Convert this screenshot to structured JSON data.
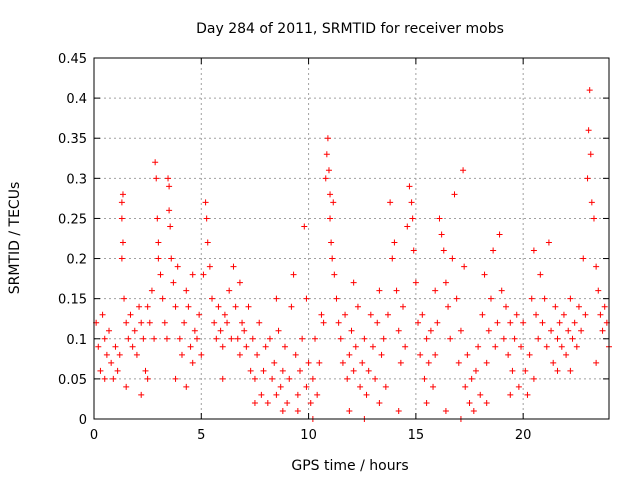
{
  "chart_data": {
    "type": "scatter",
    "title": "Day 284 of 2011, SRMTID for receiver mobs",
    "xlabel": "GPS time / hours",
    "ylabel": "SRMTID / TECUs",
    "xlim": [
      0,
      24
    ],
    "ylim": [
      0,
      0.45
    ],
    "xticks": [
      0,
      5,
      10,
      15,
      20
    ],
    "xtick_labels": [
      "0",
      "5",
      "10",
      "15",
      "20"
    ],
    "yticks": [
      0,
      0.05,
      0.1,
      0.15,
      0.2,
      0.25,
      0.3,
      0.35,
      0.4,
      0.45
    ],
    "ytick_labels": [
      "0",
      "0.05",
      "0.1",
      "0.15",
      "0.2",
      "0.25",
      "0.3",
      "0.35",
      "0.4",
      "0.45"
    ],
    "grid": true,
    "marker": "+",
    "marker_color": "#ff0000",
    "series": [
      {
        "name": "SRMTID",
        "points": [
          [
            0.1,
            0.12
          ],
          [
            0.2,
            0.09
          ],
          [
            0.3,
            0.06
          ],
          [
            0.4,
            0.13
          ],
          [
            0.5,
            0.1
          ],
          [
            0.6,
            0.08
          ],
          [
            0.7,
            0.11
          ],
          [
            0.8,
            0.07
          ],
          [
            0.9,
            0.05
          ],
          [
            1.0,
            0.09
          ],
          [
            1.1,
            0.06
          ],
          [
            1.2,
            0.08
          ],
          [
            1.3,
            0.27
          ],
          [
            1.35,
            0.28
          ],
          [
            1.3,
            0.25
          ],
          [
            1.35,
            0.22
          ],
          [
            1.3,
            0.2
          ],
          [
            1.4,
            0.15
          ],
          [
            1.5,
            0.12
          ],
          [
            1.6,
            0.1
          ],
          [
            1.7,
            0.13
          ],
          [
            1.8,
            0.09
          ],
          [
            1.9,
            0.11
          ],
          [
            2.0,
            0.08
          ],
          [
            2.1,
            0.14
          ],
          [
            2.2,
            0.12
          ],
          [
            2.3,
            0.1
          ],
          [
            2.4,
            0.06
          ],
          [
            2.5,
            0.05
          ],
          [
            2.6,
            0.12
          ],
          [
            2.7,
            0.16
          ],
          [
            2.8,
            0.1
          ],
          [
            2.85,
            0.32
          ],
          [
            2.9,
            0.3
          ],
          [
            2.95,
            0.25
          ],
          [
            3.0,
            0.22
          ],
          [
            3.0,
            0.2
          ],
          [
            3.1,
            0.18
          ],
          [
            3.2,
            0.15
          ],
          [
            3.3,
            0.12
          ],
          [
            3.4,
            0.1
          ],
          [
            3.45,
            0.3
          ],
          [
            3.5,
            0.29
          ],
          [
            3.5,
            0.26
          ],
          [
            3.55,
            0.24
          ],
          [
            3.6,
            0.2
          ],
          [
            3.7,
            0.17
          ],
          [
            3.8,
            0.14
          ],
          [
            3.9,
            0.19
          ],
          [
            4.0,
            0.1
          ],
          [
            4.1,
            0.08
          ],
          [
            4.2,
            0.12
          ],
          [
            4.3,
            0.16
          ],
          [
            4.4,
            0.14
          ],
          [
            4.5,
            0.09
          ],
          [
            4.6,
            0.07
          ],
          [
            4.7,
            0.11
          ],
          [
            4.8,
            0.1
          ],
          [
            4.9,
            0.13
          ],
          [
            5.0,
            0.08
          ],
          [
            5.1,
            0.18
          ],
          [
            5.2,
            0.27
          ],
          [
            5.25,
            0.25
          ],
          [
            5.3,
            0.22
          ],
          [
            5.4,
            0.19
          ],
          [
            5.5,
            0.15
          ],
          [
            5.6,
            0.12
          ],
          [
            5.7,
            0.1
          ],
          [
            5.8,
            0.14
          ],
          [
            5.9,
            0.11
          ],
          [
            6.0,
            0.09
          ],
          [
            6.1,
            0.13
          ],
          [
            6.2,
            0.12
          ],
          [
            6.3,
            0.16
          ],
          [
            6.4,
            0.1
          ],
          [
            6.5,
            0.19
          ],
          [
            6.6,
            0.14
          ],
          [
            6.7,
            0.1
          ],
          [
            6.8,
            0.08
          ],
          [
            6.9,
            0.12
          ],
          [
            7.0,
            0.11
          ],
          [
            7.1,
            0.09
          ],
          [
            7.2,
            0.14
          ],
          [
            7.3,
            0.06
          ],
          [
            7.4,
            0.1
          ],
          [
            7.5,
            0.05
          ],
          [
            7.6,
            0.08
          ],
          [
            7.7,
            0.12
          ],
          [
            7.8,
            0.03
          ],
          [
            7.9,
            0.06
          ],
          [
            8.0,
            0.09
          ],
          [
            8.1,
            0.02
          ],
          [
            8.2,
            0.1
          ],
          [
            8.3,
            0.05
          ],
          [
            8.4,
            0.07
          ],
          [
            8.5,
            0.03
          ],
          [
            8.6,
            0.11
          ],
          [
            8.7,
            0.04
          ],
          [
            8.8,
            0.06
          ],
          [
            8.9,
            0.09
          ],
          [
            9.0,
            0.02
          ],
          [
            9.1,
            0.05
          ],
          [
            9.2,
            0.14
          ],
          [
            9.3,
            0.18
          ],
          [
            9.4,
            0.08
          ],
          [
            9.5,
            0.03
          ],
          [
            9.6,
            0.06
          ],
          [
            9.7,
            0.1
          ],
          [
            9.8,
            0.24
          ],
          [
            9.9,
            0.04
          ],
          [
            10.0,
            0.07
          ],
          [
            10.1,
            0.02
          ],
          [
            10.2,
            0.05
          ],
          [
            10.3,
            0.1
          ],
          [
            10.4,
            0.03
          ],
          [
            10.5,
            0.07
          ],
          [
            10.6,
            0.13
          ],
          [
            10.7,
            0.12
          ],
          [
            10.8,
            0.3
          ],
          [
            10.85,
            0.33
          ],
          [
            10.9,
            0.35
          ],
          [
            10.95,
            0.31
          ],
          [
            11.0,
            0.28
          ],
          [
            11.0,
            0.25
          ],
          [
            11.05,
            0.22
          ],
          [
            11.1,
            0.2
          ],
          [
            11.15,
            0.27
          ],
          [
            11.2,
            0.18
          ],
          [
            11.3,
            0.15
          ],
          [
            11.4,
            0.12
          ],
          [
            11.5,
            0.1
          ],
          [
            11.6,
            0.07
          ],
          [
            11.7,
            0.13
          ],
          [
            11.8,
            0.05
          ],
          [
            11.9,
            0.08
          ],
          [
            12.0,
            0.11
          ],
          [
            12.1,
            0.06
          ],
          [
            12.2,
            0.09
          ],
          [
            12.3,
            0.14
          ],
          [
            12.4,
            0.04
          ],
          [
            12.5,
            0.07
          ],
          [
            12.6,
            0.1
          ],
          [
            12.7,
            0.03
          ],
          [
            12.8,
            0.06
          ],
          [
            12.9,
            0.13
          ],
          [
            13.0,
            0.09
          ],
          [
            13.1,
            0.05
          ],
          [
            13.2,
            0.12
          ],
          [
            13.3,
            0.16
          ],
          [
            13.4,
            0.08
          ],
          [
            13.5,
            0.1
          ],
          [
            13.6,
            0.04
          ],
          [
            13.7,
            0.13
          ],
          [
            13.8,
            0.27
          ],
          [
            13.9,
            0.2
          ],
          [
            14.0,
            0.22
          ],
          [
            14.1,
            0.16
          ],
          [
            14.2,
            0.11
          ],
          [
            14.3,
            0.07
          ],
          [
            14.4,
            0.14
          ],
          [
            14.5,
            0.09
          ],
          [
            14.6,
            0.24
          ],
          [
            14.7,
            0.29
          ],
          [
            14.8,
            0.27
          ],
          [
            14.85,
            0.25
          ],
          [
            14.9,
            0.21
          ],
          [
            15.0,
            0.17
          ],
          [
            15.1,
            0.12
          ],
          [
            15.2,
            0.08
          ],
          [
            15.3,
            0.13
          ],
          [
            15.4,
            0.05
          ],
          [
            15.5,
            0.1
          ],
          [
            15.6,
            0.07
          ],
          [
            15.7,
            0.11
          ],
          [
            15.8,
            0.04
          ],
          [
            15.9,
            0.08
          ],
          [
            16.0,
            0.12
          ],
          [
            16.1,
            0.25
          ],
          [
            16.2,
            0.23
          ],
          [
            16.3,
            0.21
          ],
          [
            16.4,
            0.17
          ],
          [
            16.5,
            0.14
          ],
          [
            16.6,
            0.1
          ],
          [
            16.7,
            0.2
          ],
          [
            16.8,
            0.28
          ],
          [
            16.9,
            0.15
          ],
          [
            17.0,
            0.07
          ],
          [
            17.1,
            0.11
          ],
          [
            17.2,
            0.31
          ],
          [
            17.25,
            0.19
          ],
          [
            17.3,
            0.04
          ],
          [
            17.4,
            0.08
          ],
          [
            17.5,
            0.02
          ],
          [
            17.6,
            0.05
          ],
          [
            17.7,
            0.01
          ],
          [
            17.8,
            0.06
          ],
          [
            17.9,
            0.09
          ],
          [
            18.0,
            0.03
          ],
          [
            18.1,
            0.13
          ],
          [
            18.2,
            0.18
          ],
          [
            18.3,
            0.07
          ],
          [
            18.4,
            0.11
          ],
          [
            18.5,
            0.15
          ],
          [
            18.6,
            0.21
          ],
          [
            18.7,
            0.09
          ],
          [
            18.8,
            0.12
          ],
          [
            18.9,
            0.23
          ],
          [
            19.0,
            0.16
          ],
          [
            19.1,
            0.1
          ],
          [
            19.2,
            0.14
          ],
          [
            19.3,
            0.08
          ],
          [
            19.4,
            0.12
          ],
          [
            19.5,
            0.06
          ],
          [
            19.6,
            0.1
          ],
          [
            19.7,
            0.13
          ],
          [
            19.8,
            0.04
          ],
          [
            19.9,
            0.09
          ],
          [
            20.0,
            0.12
          ],
          [
            20.1,
            0.06
          ],
          [
            20.2,
            0.03
          ],
          [
            20.3,
            0.08
          ],
          [
            20.4,
            0.15
          ],
          [
            20.5,
            0.21
          ],
          [
            20.6,
            0.13
          ],
          [
            20.7,
            0.1
          ],
          [
            20.8,
            0.18
          ],
          [
            20.9,
            0.12
          ],
          [
            21.0,
            0.15
          ],
          [
            21.1,
            0.09
          ],
          [
            21.2,
            0.22
          ],
          [
            21.3,
            0.11
          ],
          [
            21.4,
            0.07
          ],
          [
            21.5,
            0.14
          ],
          [
            21.6,
            0.1
          ],
          [
            21.7,
            0.12
          ],
          [
            21.8,
            0.09
          ],
          [
            21.9,
            0.13
          ],
          [
            22.0,
            0.08
          ],
          [
            22.1,
            0.11
          ],
          [
            22.2,
            0.15
          ],
          [
            22.3,
            0.1
          ],
          [
            22.4,
            0.12
          ],
          [
            22.5,
            0.09
          ],
          [
            22.6,
            0.14
          ],
          [
            22.7,
            0.11
          ],
          [
            22.8,
            0.2
          ],
          [
            22.9,
            0.13
          ],
          [
            23.0,
            0.3
          ],
          [
            23.05,
            0.36
          ],
          [
            23.1,
            0.41
          ],
          [
            23.15,
            0.33
          ],
          [
            23.2,
            0.27
          ],
          [
            23.3,
            0.25
          ],
          [
            23.4,
            0.19
          ],
          [
            23.5,
            0.16
          ],
          [
            23.6,
            0.13
          ],
          [
            23.7,
            0.11
          ],
          [
            23.8,
            0.14
          ],
          [
            23.9,
            0.12
          ],
          [
            24.0,
            0.09
          ],
          [
            0.5,
            0.05
          ],
          [
            1.5,
            0.04
          ],
          [
            2.2,
            0.03
          ],
          [
            3.8,
            0.05
          ],
          [
            4.3,
            0.04
          ],
          [
            6.0,
            0.05
          ],
          [
            7.5,
            0.02
          ],
          [
            8.8,
            0.01
          ],
          [
            9.5,
            0.01
          ],
          [
            10.2,
            0.0
          ],
          [
            11.9,
            0.01
          ],
          [
            12.6,
            0.0
          ],
          [
            13.3,
            0.02
          ],
          [
            14.2,
            0.01
          ],
          [
            15.5,
            0.02
          ],
          [
            16.4,
            0.01
          ],
          [
            17.1,
            0.0
          ],
          [
            18.3,
            0.02
          ],
          [
            19.4,
            0.03
          ],
          [
            20.5,
            0.05
          ],
          [
            21.6,
            0.06
          ],
          [
            22.2,
            0.06
          ],
          [
            23.4,
            0.07
          ],
          [
            2.5,
            0.14
          ],
          [
            4.6,
            0.18
          ],
          [
            6.8,
            0.17
          ],
          [
            8.5,
            0.15
          ],
          [
            9.9,
            0.15
          ],
          [
            12.1,
            0.17
          ],
          [
            15.9,
            0.16
          ]
        ]
      }
    ]
  }
}
